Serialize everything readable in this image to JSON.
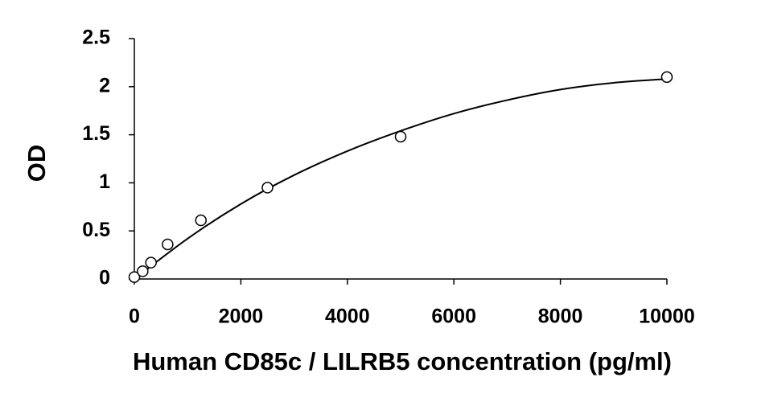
{
  "chart_data": {
    "type": "scatter",
    "x_label": "Human CD85c / LILRB5 concentration (pg/ml)",
    "y_label": "OD",
    "x": [
      0,
      156.25,
      312.5,
      625,
      1250,
      2500,
      5000,
      10000
    ],
    "values": [
      0.02,
      0.08,
      0.17,
      0.36,
      0.61,
      0.95,
      1.48,
      2.1
    ],
    "curve": {
      "x": [
        0,
        1000,
        2000,
        3000,
        4000,
        5000,
        6000,
        7000,
        8000,
        9000,
        10000
      ],
      "values": [
        0,
        0.42,
        0.78,
        1.08,
        1.33,
        1.54,
        1.72,
        1.86,
        1.97,
        2.04,
        2.08
      ]
    },
    "color": "#000000",
    "xlim": [
      0,
      10000
    ],
    "xticks": [
      0,
      2000,
      4000,
      6000,
      8000,
      10000
    ],
    "ylim": [
      0,
      2.5
    ],
    "yticks": [
      0,
      0.5,
      1,
      1.5,
      2,
      2.5
    ],
    "grid": false
  }
}
